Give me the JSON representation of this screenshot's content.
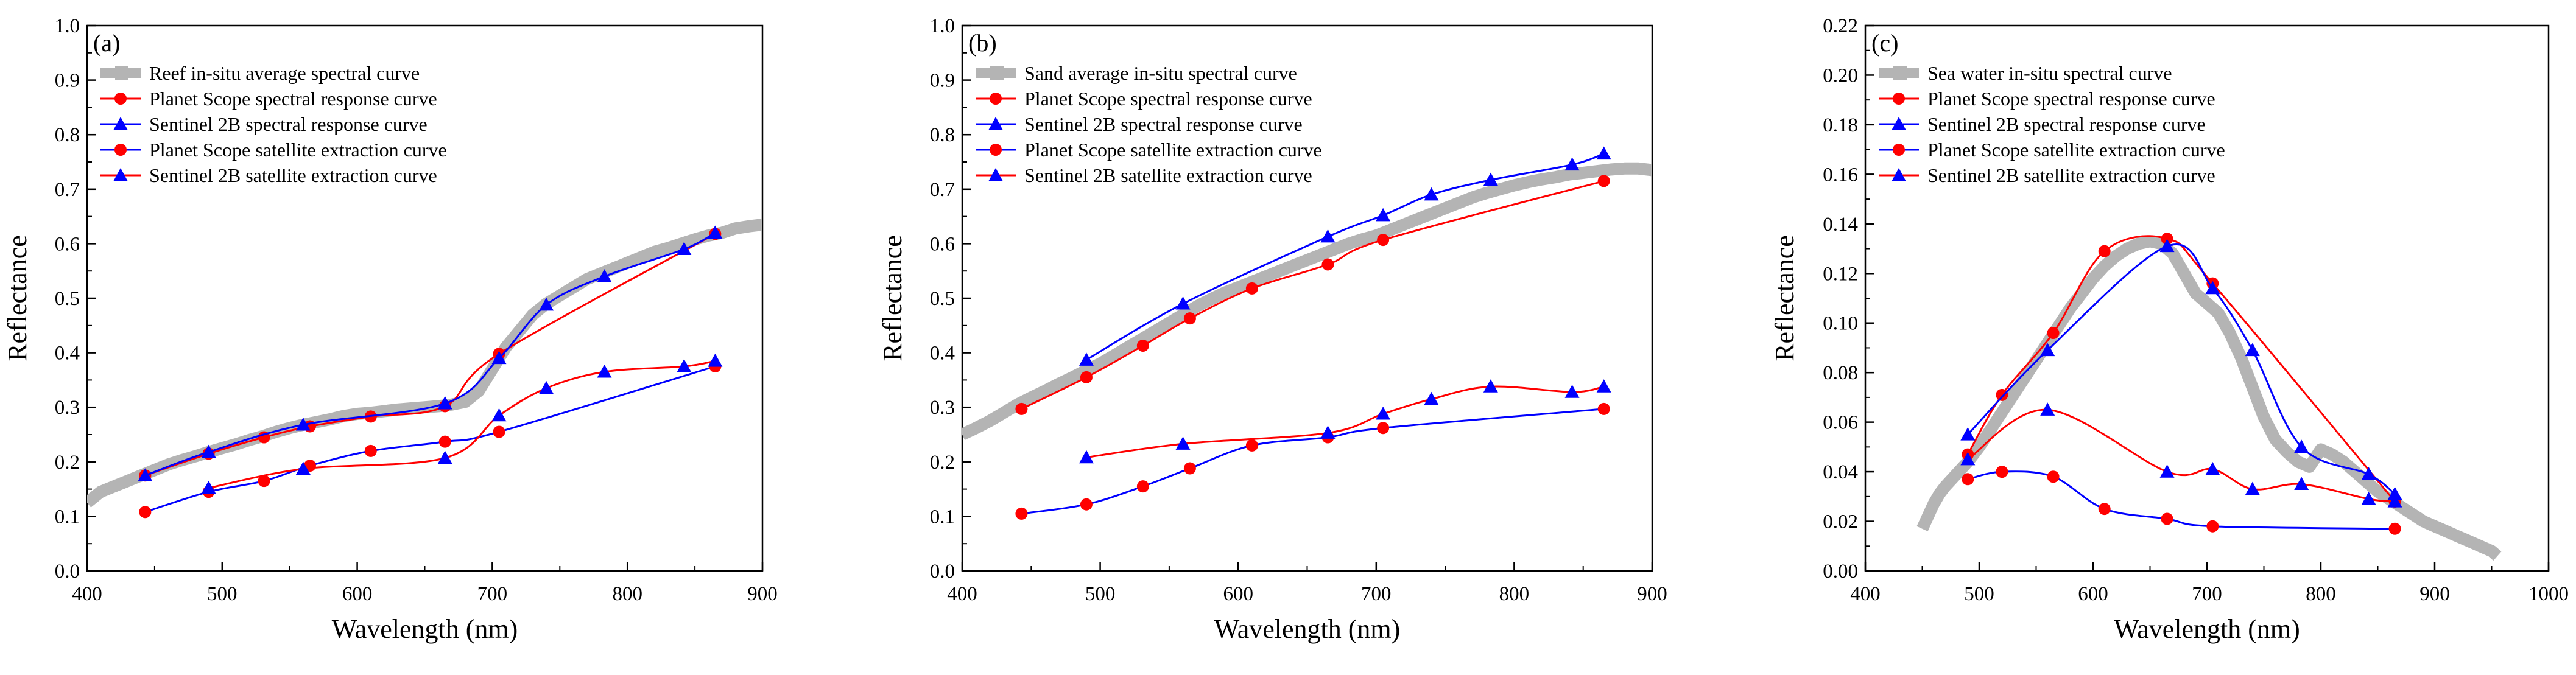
{
  "chart_data": [
    {
      "type": "line",
      "panel_label": "(a)",
      "xlabel": "Wavelength (nm)",
      "ylabel": "Reflectance",
      "xlim": [
        400,
        900
      ],
      "ylim": [
        0.0,
        1.0
      ],
      "xticks": [
        400,
        500,
        600,
        700,
        800,
        900
      ],
      "yticks": [
        0.0,
        0.1,
        0.2,
        0.3,
        0.4,
        0.5,
        0.6,
        0.7,
        0.8,
        0.9,
        1.0
      ],
      "ytick_labels": [
        "0.0",
        "0.1",
        "0.2",
        "0.3",
        "0.4",
        "0.5",
        "0.6",
        "0.7",
        "0.8",
        "0.9",
        "1.0"
      ],
      "legend_position": "top-left",
      "series": [
        {
          "name": "Reef in-situ average spectral curve",
          "kind": "insitu",
          "color": "#b4b4b4",
          "x": [
            400,
            410,
            420,
            430,
            440,
            450,
            460,
            470,
            480,
            490,
            500,
            510,
            520,
            530,
            540,
            550,
            560,
            570,
            580,
            590,
            600,
            610,
            620,
            630,
            640,
            650,
            660,
            670,
            680,
            690,
            700,
            710,
            720,
            730,
            740,
            750,
            760,
            770,
            780,
            790,
            800,
            810,
            820,
            830,
            840,
            850,
            860,
            870,
            880,
            890,
            900
          ],
          "y": [
            0.125,
            0.145,
            0.155,
            0.165,
            0.175,
            0.185,
            0.195,
            0.203,
            0.21,
            0.218,
            0.225,
            0.232,
            0.24,
            0.247,
            0.255,
            0.262,
            0.268,
            0.273,
            0.278,
            0.284,
            0.288,
            0.29,
            0.293,
            0.296,
            0.298,
            0.3,
            0.302,
            0.305,
            0.31,
            0.33,
            0.37,
            0.41,
            0.44,
            0.47,
            0.49,
            0.505,
            0.52,
            0.535,
            0.545,
            0.555,
            0.565,
            0.575,
            0.585,
            0.592,
            0.6,
            0.608,
            0.615,
            0.62,
            0.628,
            0.632,
            0.635
          ]
        },
        {
          "name": "Planet Scope spectral response curve",
          "kind": "response",
          "color": "#ff0000",
          "marker": "circle",
          "x": [
            443,
            490,
            531,
            565,
            610,
            665,
            705,
            865
          ],
          "y": [
            0.175,
            0.215,
            0.245,
            0.265,
            0.283,
            0.302,
            0.398,
            0.618
          ]
        },
        {
          "name": "Sentinel 2B spectral response curve",
          "kind": "response",
          "color": "#0000ff",
          "marker": "triangle",
          "x": [
            443,
            490,
            560,
            665,
            705,
            740,
            783,
            842,
            865
          ],
          "y": [
            0.175,
            0.218,
            0.268,
            0.307,
            0.39,
            0.488,
            0.54,
            0.59,
            0.62
          ]
        },
        {
          "name": "Planet Scope satellite extraction curve",
          "kind": "extraction",
          "color": "#0000ff",
          "marker": "circle",
          "x": [
            443,
            490,
            531,
            565,
            610,
            665,
            705,
            865
          ],
          "y": [
            0.108,
            0.145,
            0.165,
            0.193,
            0.22,
            0.237,
            0.255,
            0.375
          ]
        },
        {
          "name": "Sentinel 2B satellite extraction curve",
          "kind": "extraction",
          "color": "#ff0000",
          "marker": "triangle",
          "x": [
            490,
            560,
            665,
            705,
            740,
            783,
            842,
            865
          ],
          "y": [
            0.152,
            0.187,
            0.207,
            0.285,
            0.335,
            0.365,
            0.375,
            0.385
          ]
        }
      ]
    },
    {
      "type": "line",
      "panel_label": "(b)",
      "xlabel": "Wavelength (nm)",
      "ylabel": "Reflectance",
      "xlim": [
        400,
        900
      ],
      "ylim": [
        0.0,
        1.0
      ],
      "xticks": [
        400,
        500,
        600,
        700,
        800,
        900
      ],
      "yticks": [
        0.0,
        0.1,
        0.2,
        0.3,
        0.4,
        0.5,
        0.6,
        0.7,
        0.8,
        0.9,
        1.0
      ],
      "ytick_labels": [
        "0.0",
        "0.1",
        "0.2",
        "0.3",
        "0.4",
        "0.5",
        "0.6",
        "0.7",
        "0.8",
        "0.9",
        "1.0"
      ],
      "legend_position": "top-left",
      "series": [
        {
          "name": "Sand average in-situ spectral curve",
          "kind": "insitu",
          "color": "#b4b4b4",
          "x": [
            400,
            410,
            420,
            430,
            440,
            450,
            460,
            470,
            480,
            490,
            500,
            510,
            520,
            530,
            540,
            550,
            560,
            570,
            580,
            590,
            600,
            610,
            620,
            630,
            640,
            650,
            660,
            670,
            680,
            690,
            700,
            710,
            720,
            730,
            740,
            750,
            760,
            770,
            780,
            790,
            800,
            810,
            820,
            830,
            840,
            850,
            860,
            870,
            880,
            890,
            900
          ],
          "y": [
            0.25,
            0.262,
            0.275,
            0.29,
            0.305,
            0.318,
            0.33,
            0.343,
            0.355,
            0.368,
            0.38,
            0.395,
            0.41,
            0.425,
            0.44,
            0.455,
            0.47,
            0.485,
            0.498,
            0.51,
            0.52,
            0.53,
            0.54,
            0.55,
            0.56,
            0.57,
            0.58,
            0.59,
            0.6,
            0.608,
            0.615,
            0.625,
            0.635,
            0.645,
            0.655,
            0.665,
            0.675,
            0.685,
            0.693,
            0.7,
            0.707,
            0.713,
            0.718,
            0.722,
            0.727,
            0.73,
            0.733,
            0.736,
            0.738,
            0.738,
            0.735
          ]
        },
        {
          "name": "Planet Scope spectral response curve",
          "kind": "response",
          "color": "#ff0000",
          "marker": "circle",
          "x": [
            443,
            490,
            531,
            565,
            610,
            665,
            705,
            865
          ],
          "y": [
            0.297,
            0.355,
            0.413,
            0.463,
            0.518,
            0.562,
            0.607,
            0.715
          ]
        },
        {
          "name": "Sentinel 2B spectral response curve",
          "kind": "response",
          "color": "#0000ff",
          "marker": "triangle",
          "x": [
            490,
            560,
            665,
            705,
            740,
            783,
            842,
            865
          ],
          "y": [
            0.387,
            0.49,
            0.613,
            0.652,
            0.69,
            0.717,
            0.745,
            0.765
          ]
        },
        {
          "name": "Planet Scope satellite extraction curve",
          "kind": "extraction",
          "color": "#0000ff",
          "marker": "circle",
          "x": [
            443,
            490,
            531,
            565,
            610,
            665,
            705,
            865
          ],
          "y": [
            0.105,
            0.122,
            0.155,
            0.188,
            0.23,
            0.245,
            0.262,
            0.297
          ]
        },
        {
          "name": "Sentinel 2B satellite extraction curve",
          "kind": "extraction",
          "color": "#ff0000",
          "marker": "triangle",
          "x": [
            490,
            560,
            665,
            705,
            740,
            783,
            842,
            865
          ],
          "y": [
            0.208,
            0.233,
            0.253,
            0.288,
            0.315,
            0.338,
            0.328,
            0.338
          ]
        }
      ]
    },
    {
      "type": "line",
      "panel_label": "(c)",
      "xlabel": "Wavelength (nm)",
      "ylabel": "Reflectance",
      "xlim": [
        400,
        1000
      ],
      "ylim": [
        0.0,
        0.22
      ],
      "xticks": [
        400,
        500,
        600,
        700,
        800,
        900,
        1000
      ],
      "yticks": [
        0.0,
        0.02,
        0.04,
        0.06,
        0.08,
        0.1,
        0.12,
        0.14,
        0.16,
        0.18,
        0.2,
        0.22
      ],
      "ytick_labels": [
        "0.00",
        "0.02",
        "0.04",
        "0.06",
        "0.08",
        "0.10",
        "0.12",
        "0.14",
        "0.16",
        "0.18",
        "0.20",
        "0.22"
      ],
      "legend_position": "top-left",
      "series": [
        {
          "name": "Sea water in-situ spectral curve",
          "kind": "insitu",
          "color": "#b4b4b4",
          "x": [
            450,
            455,
            460,
            465,
            470,
            480,
            490,
            500,
            510,
            520,
            530,
            540,
            550,
            560,
            570,
            580,
            590,
            600,
            610,
            620,
            630,
            640,
            650,
            660,
            670,
            680,
            690,
            700,
            710,
            720,
            730,
            740,
            750,
            760,
            770,
            780,
            790,
            800,
            810,
            820,
            830,
            840,
            850,
            860,
            870,
            880,
            890,
            900,
            910,
            920,
            930,
            940,
            950,
            955
          ],
          "y": [
            0.017,
            0.022,
            0.027,
            0.031,
            0.034,
            0.039,
            0.044,
            0.05,
            0.057,
            0.064,
            0.071,
            0.078,
            0.085,
            0.092,
            0.099,
            0.106,
            0.112,
            0.118,
            0.123,
            0.127,
            0.13,
            0.132,
            0.133,
            0.132,
            0.128,
            0.12,
            0.112,
            0.108,
            0.104,
            0.096,
            0.086,
            0.074,
            0.062,
            0.053,
            0.048,
            0.044,
            0.042,
            0.049,
            0.047,
            0.044,
            0.04,
            0.036,
            0.032,
            0.029,
            0.026,
            0.023,
            0.02,
            0.018,
            0.016,
            0.014,
            0.012,
            0.01,
            0.008,
            0.006
          ]
        },
        {
          "name": "Planet Scope spectral response curve",
          "kind": "response",
          "color": "#ff0000",
          "marker": "circle",
          "x": [
            490,
            520,
            565,
            610,
            665,
            705,
            865
          ],
          "y": [
            0.047,
            0.071,
            0.096,
            0.129,
            0.134,
            0.116,
            0.028
          ]
        },
        {
          "name": "Sentinel 2B spectral response curve",
          "kind": "response",
          "color": "#0000ff",
          "marker": "triangle",
          "x": [
            490,
            560,
            665,
            705,
            740,
            783,
            842,
            865
          ],
          "y": [
            0.055,
            0.089,
            0.131,
            0.114,
            0.089,
            0.05,
            0.039,
            0.031
          ]
        },
        {
          "name": "Planet Scope satellite extraction curve",
          "kind": "extraction",
          "color": "#0000ff",
          "marker": "circle",
          "x": [
            490,
            520,
            565,
            610,
            665,
            705,
            865
          ],
          "y": [
            0.037,
            0.04,
            0.038,
            0.025,
            0.021,
            0.018,
            0.017
          ]
        },
        {
          "name": "Sentinel 2B satellite extraction curve",
          "kind": "extraction",
          "color": "#ff0000",
          "marker": "triangle",
          "x": [
            490,
            560,
            665,
            705,
            740,
            783,
            842,
            865
          ],
          "y": [
            0.045,
            0.065,
            0.04,
            0.041,
            0.033,
            0.035,
            0.029,
            0.028
          ]
        }
      ]
    }
  ]
}
